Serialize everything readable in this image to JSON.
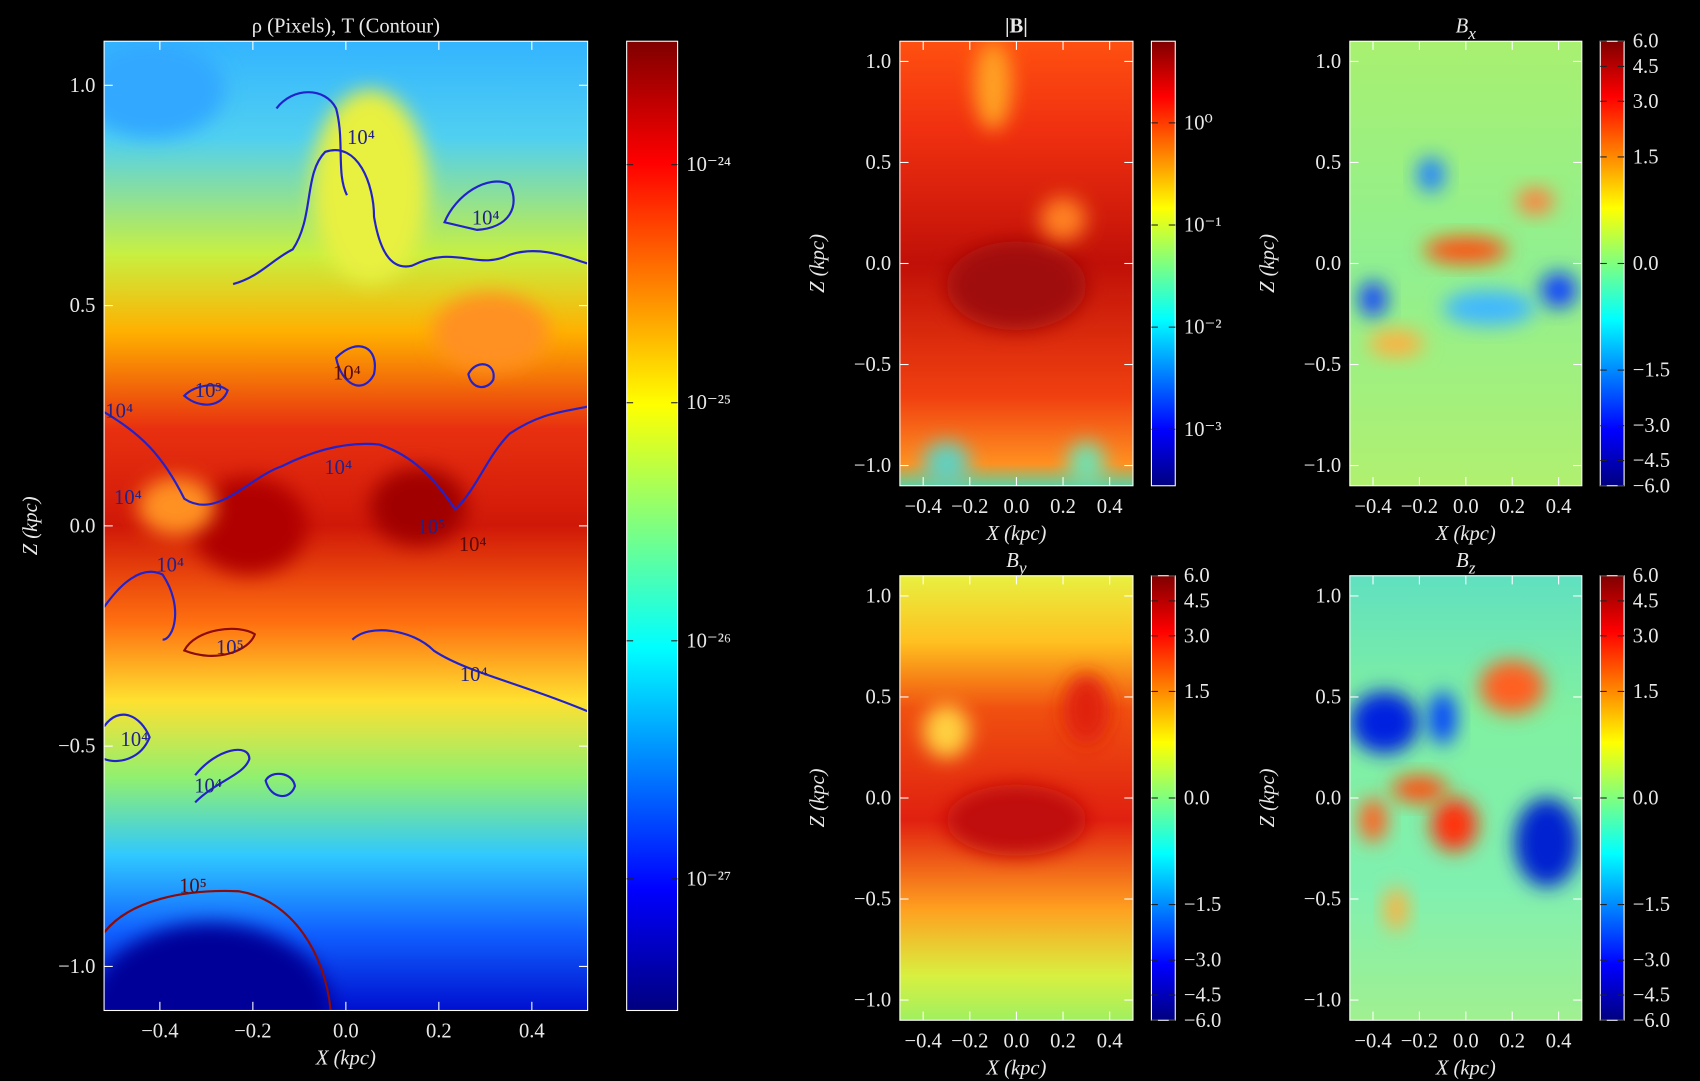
{
  "chart_data": [
    {
      "type": "heatmap",
      "title": "ρ (Pixels), T (Contour)",
      "xlabel": "X (kpc)",
      "ylabel": "Z (kpc)",
      "cmap": "jet",
      "xlim": [
        -0.52,
        0.52
      ],
      "ylim": [
        -1.1,
        1.1
      ],
      "xticks": [
        {
          "value": -0.4,
          "label": "−0.4"
        },
        {
          "value": -0.2,
          "label": "−0.2"
        },
        {
          "value": 0,
          "label": "0.0"
        },
        0.2,
        0.4
      ],
      "yticks": [
        {
          "value": -1,
          "label": "−1.0"
        },
        {
          "value": -0.5,
          "label": "−0.5"
        },
        {
          "value": 0,
          "label": "0.0"
        },
        0.5,
        {
          "value": 1,
          "label": "1.0"
        }
      ],
      "colorbar": {
        "scale": "log",
        "lim": [
          2.8e-28,
          3.3e-24
        ],
        "ticks": [
          {
            "value": 1e-27,
            "label": "10⁻²⁷"
          },
          {
            "value": 1e-26,
            "label": "10⁻²⁶"
          },
          {
            "value": 1e-25,
            "label": "10⁻²⁵"
          },
          {
            "value": 1e-24,
            "label": "10⁻²⁴"
          }
        ]
      },
      "annotations": [
        "10⁴",
        "10⁴",
        "10³",
        "10⁴",
        "10⁴",
        "10⁴",
        "10⁴",
        "10⁴",
        "10⁵",
        "10⁴",
        "10⁵",
        "10⁴",
        "10⁴",
        "10⁴",
        "10⁵"
      ]
    },
    {
      "type": "heatmap",
      "title": "|B|",
      "xlabel": "X (kpc)",
      "ylabel": "Z (kpc)",
      "cmap": "jet",
      "xlim": [
        -0.5,
        0.5
      ],
      "ylim": [
        -1.1,
        1.1
      ],
      "xticks": [
        {
          "value": -0.4,
          "label": "−0.4"
        },
        {
          "value": -0.2,
          "label": "−0.2"
        },
        {
          "value": 0,
          "label": "0.0"
        },
        0.2,
        0.4
      ],
      "yticks": [
        {
          "value": -1,
          "label": "−1.0"
        },
        {
          "value": -0.5,
          "label": "−0.5"
        },
        {
          "value": 0,
          "label": "0.0"
        },
        0.5,
        {
          "value": 1,
          "label": "1.0"
        }
      ],
      "colorbar": {
        "scale": "log",
        "lim": [
          0.00028,
          6.3
        ],
        "ticks": [
          {
            "value": 0.001,
            "label": "10⁻³"
          },
          {
            "value": 0.01,
            "label": "10⁻²"
          },
          {
            "value": 0.1,
            "label": "10⁻¹"
          },
          {
            "value": 1,
            "label": "10⁰"
          }
        ]
      }
    },
    {
      "type": "heatmap",
      "title": "Bx",
      "xlabel": "X (kpc)",
      "ylabel": "Z (kpc)",
      "cmap": "jet",
      "xlim": [
        -0.5,
        0.5
      ],
      "ylim": [
        -1.1,
        1.1
      ],
      "xticks": [
        {
          "value": -0.4,
          "label": "−0.4"
        },
        {
          "value": -0.2,
          "label": "−0.2"
        },
        {
          "value": 0,
          "label": "0.0"
        },
        0.2,
        0.4
      ],
      "yticks": [
        {
          "value": -1,
          "label": "−1.0"
        },
        {
          "value": -0.5,
          "label": "−0.5"
        },
        {
          "value": 0,
          "label": "0.0"
        },
        0.5,
        {
          "value": 1,
          "label": "1.0"
        }
      ],
      "colorbar": {
        "scale": "asinh",
        "lim": [
          -6,
          6
        ],
        "ticks": [
          {
            "value": -6,
            "label": "−6.0"
          },
          {
            "value": -4.5,
            "label": "−4.5"
          },
          {
            "value": -3,
            "label": "−3.0"
          },
          {
            "value": -1.5,
            "label": "−1.5"
          },
          {
            "value": 0,
            "label": "0.0"
          },
          1.5,
          {
            "value": 3,
            "label": "3.0"
          },
          4.5,
          {
            "value": 6,
            "label": "6.0"
          }
        ]
      }
    },
    {
      "type": "heatmap",
      "title": "By",
      "xlabel": "X (kpc)",
      "ylabel": "Z (kpc)",
      "cmap": "jet",
      "xlim": [
        -0.5,
        0.5
      ],
      "ylim": [
        -1.1,
        1.1
      ],
      "xticks": [
        {
          "value": -0.4,
          "label": "−0.4"
        },
        {
          "value": -0.2,
          "label": "−0.2"
        },
        {
          "value": 0,
          "label": "0.0"
        },
        0.2,
        0.4
      ],
      "yticks": [
        {
          "value": -1,
          "label": "−1.0"
        },
        {
          "value": -0.5,
          "label": "−0.5"
        },
        {
          "value": 0,
          "label": "0.0"
        },
        0.5,
        {
          "value": 1,
          "label": "1.0"
        }
      ],
      "colorbar": {
        "scale": "asinh",
        "lim": [
          -6,
          6
        ],
        "ticks": [
          {
            "value": -6,
            "label": "−6.0"
          },
          {
            "value": -4.5,
            "label": "−4.5"
          },
          {
            "value": -3,
            "label": "−3.0"
          },
          {
            "value": -1.5,
            "label": "−1.5"
          },
          {
            "value": 0,
            "label": "0.0"
          },
          1.5,
          {
            "value": 3,
            "label": "3.0"
          },
          4.5,
          {
            "value": 6,
            "label": "6.0"
          }
        ]
      }
    },
    {
      "type": "heatmap",
      "title": "Bz",
      "xlabel": "X (kpc)",
      "ylabel": "Z (kpc)",
      "cmap": "jet",
      "xlim": [
        -0.5,
        0.5
      ],
      "ylim": [
        -1.1,
        1.1
      ],
      "xticks": [
        {
          "value": -0.4,
          "label": "−0.4"
        },
        {
          "value": -0.2,
          "label": "−0.2"
        },
        {
          "value": 0,
          "label": "0.0"
        },
        0.2,
        0.4
      ],
      "yticks": [
        {
          "value": -1,
          "label": "−1.0"
        },
        {
          "value": -0.5,
          "label": "−0.5"
        },
        {
          "value": 0,
          "label": "0.0"
        },
        0.5,
        {
          "value": 1,
          "label": "1.0"
        }
      ],
      "colorbar": {
        "scale": "asinh",
        "lim": [
          -6,
          6
        ],
        "ticks": [
          {
            "value": -6,
            "label": "−6.0"
          },
          {
            "value": -4.5,
            "label": "−4.5"
          },
          {
            "value": -3,
            "label": "−3.0"
          },
          {
            "value": -1.5,
            "label": "−1.5"
          },
          {
            "value": 0,
            "label": "0.0"
          },
          1.5,
          {
            "value": 3,
            "label": "3.0"
          },
          4.5,
          {
            "value": 6,
            "label": "6.0"
          }
        ]
      }
    }
  ]
}
